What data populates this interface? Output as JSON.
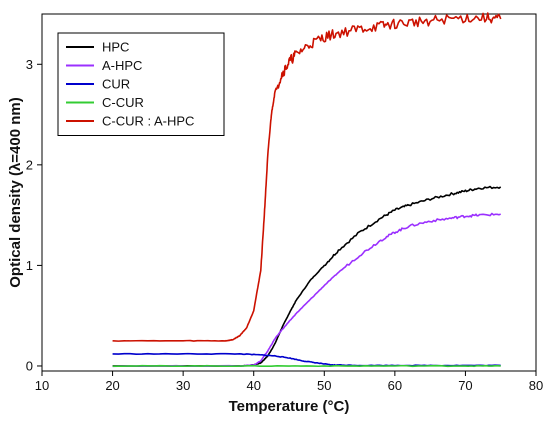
{
  "chart_data": {
    "type": "line",
    "title": "",
    "xlabel": "Temperature (°C)",
    "ylabel": "Optical density (λ=400 nm)",
    "xlim": [
      10,
      80
    ],
    "ylim": [
      -0.05,
      3.5
    ],
    "xticks": [
      10,
      20,
      30,
      40,
      50,
      60,
      70,
      80
    ],
    "yticks": [
      0,
      1,
      2,
      3
    ],
    "grid": false,
    "legend_position": "top-left",
    "series": [
      {
        "name": "HPC",
        "color": "#000000",
        "x": [
          20,
          38,
          40,
          41,
          42,
          43,
          44,
          45,
          46,
          48,
          50,
          52,
          55,
          58,
          60,
          62,
          65,
          68,
          70,
          72,
          75
        ],
        "y": [
          0,
          0,
          0.01,
          0.03,
          0.1,
          0.22,
          0.38,
          0.52,
          0.65,
          0.85,
          1.0,
          1.15,
          1.33,
          1.47,
          1.55,
          1.6,
          1.66,
          1.71,
          1.74,
          1.77,
          1.78
        ]
      },
      {
        "name": "A-HPC",
        "color": "#9b30ff",
        "x": [
          20,
          38,
          40,
          41,
          42,
          43,
          44,
          45,
          46,
          48,
          50,
          52,
          55,
          58,
          60,
          62,
          65,
          68,
          70,
          72,
          75
        ],
        "y": [
          0,
          0,
          0.01,
          0.05,
          0.15,
          0.27,
          0.36,
          0.44,
          0.52,
          0.66,
          0.8,
          0.93,
          1.1,
          1.25,
          1.33,
          1.39,
          1.44,
          1.47,
          1.49,
          1.5,
          1.51
        ]
      },
      {
        "name": "CUR",
        "color": "#0000cc",
        "x": [
          20,
          30,
          38,
          41,
          43,
          45,
          47,
          49,
          51,
          52,
          55,
          60,
          65,
          70,
          75
        ],
        "y": [
          0.12,
          0.12,
          0.12,
          0.11,
          0.1,
          0.08,
          0.05,
          0.03,
          0.01,
          0.01,
          0.005,
          0.005,
          0.005,
          0.005,
          0.005
        ]
      },
      {
        "name": "C-CUR",
        "color": "#33cc33",
        "x": [
          20,
          30,
          40,
          50,
          60,
          70,
          75
        ],
        "y": [
          0,
          0,
          0,
          0,
          0,
          0,
          0
        ]
      },
      {
        "name": "C-CUR : A-HPC",
        "color": "#cc1100",
        "x": [
          20,
          30,
          36,
          37,
          38,
          39,
          40,
          41,
          41.5,
          42,
          42.5,
          43,
          44,
          45,
          46,
          48,
          50,
          52,
          55,
          58,
          60,
          63,
          66,
          70,
          73,
          75
        ],
        "y": [
          0.25,
          0.25,
          0.25,
          0.26,
          0.3,
          0.38,
          0.55,
          0.95,
          1.5,
          2.1,
          2.5,
          2.72,
          2.9,
          3.02,
          3.1,
          3.2,
          3.27,
          3.31,
          3.35,
          3.38,
          3.4,
          3.42,
          3.44,
          3.46,
          3.46,
          3.45
        ]
      }
    ]
  }
}
